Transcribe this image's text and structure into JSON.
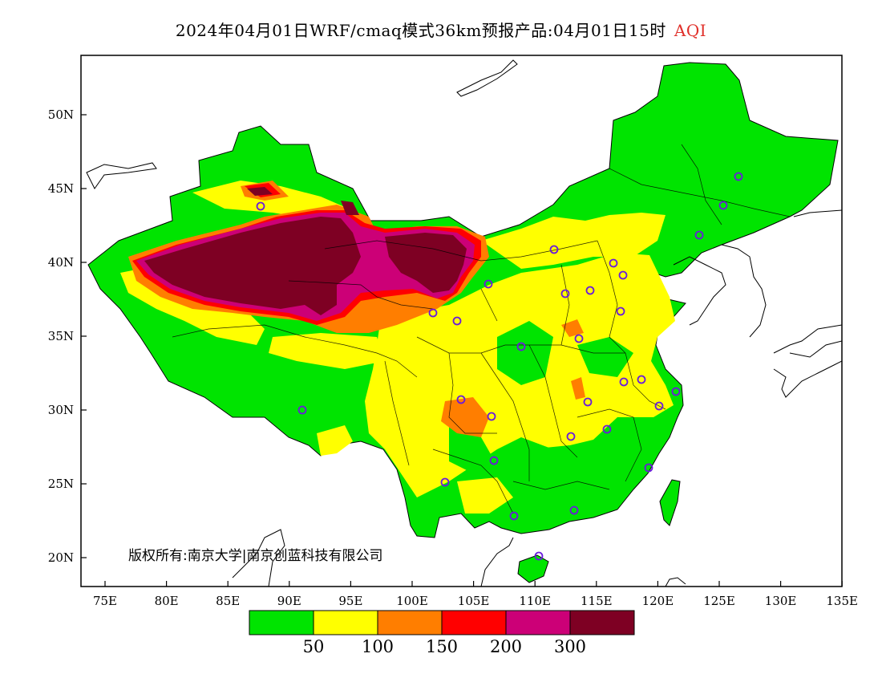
{
  "title": {
    "main": "2024年04月01日WRF/cmaq模式36km预报产品:04月01日15时",
    "variable": "AQI"
  },
  "axes": {
    "lat_ticks": [
      "50N",
      "45N",
      "40N",
      "35N",
      "30N",
      "25N",
      "20N"
    ],
    "lon_ticks": [
      "75E",
      "80E",
      "85E",
      "90E",
      "95E",
      "100E",
      "105E",
      "110E",
      "115E",
      "120E",
      "125E",
      "130E",
      "135E"
    ]
  },
  "colorbar": {
    "colors": [
      "#00e400",
      "#ffff00",
      "#ff7e00",
      "#ff0000",
      "#cc0077",
      "#7e0023"
    ],
    "labels": [
      "50",
      "100",
      "150",
      "200",
      "300"
    ]
  },
  "copyright": "版权所有:南京大学|南京创蓝科技有限公司"
}
